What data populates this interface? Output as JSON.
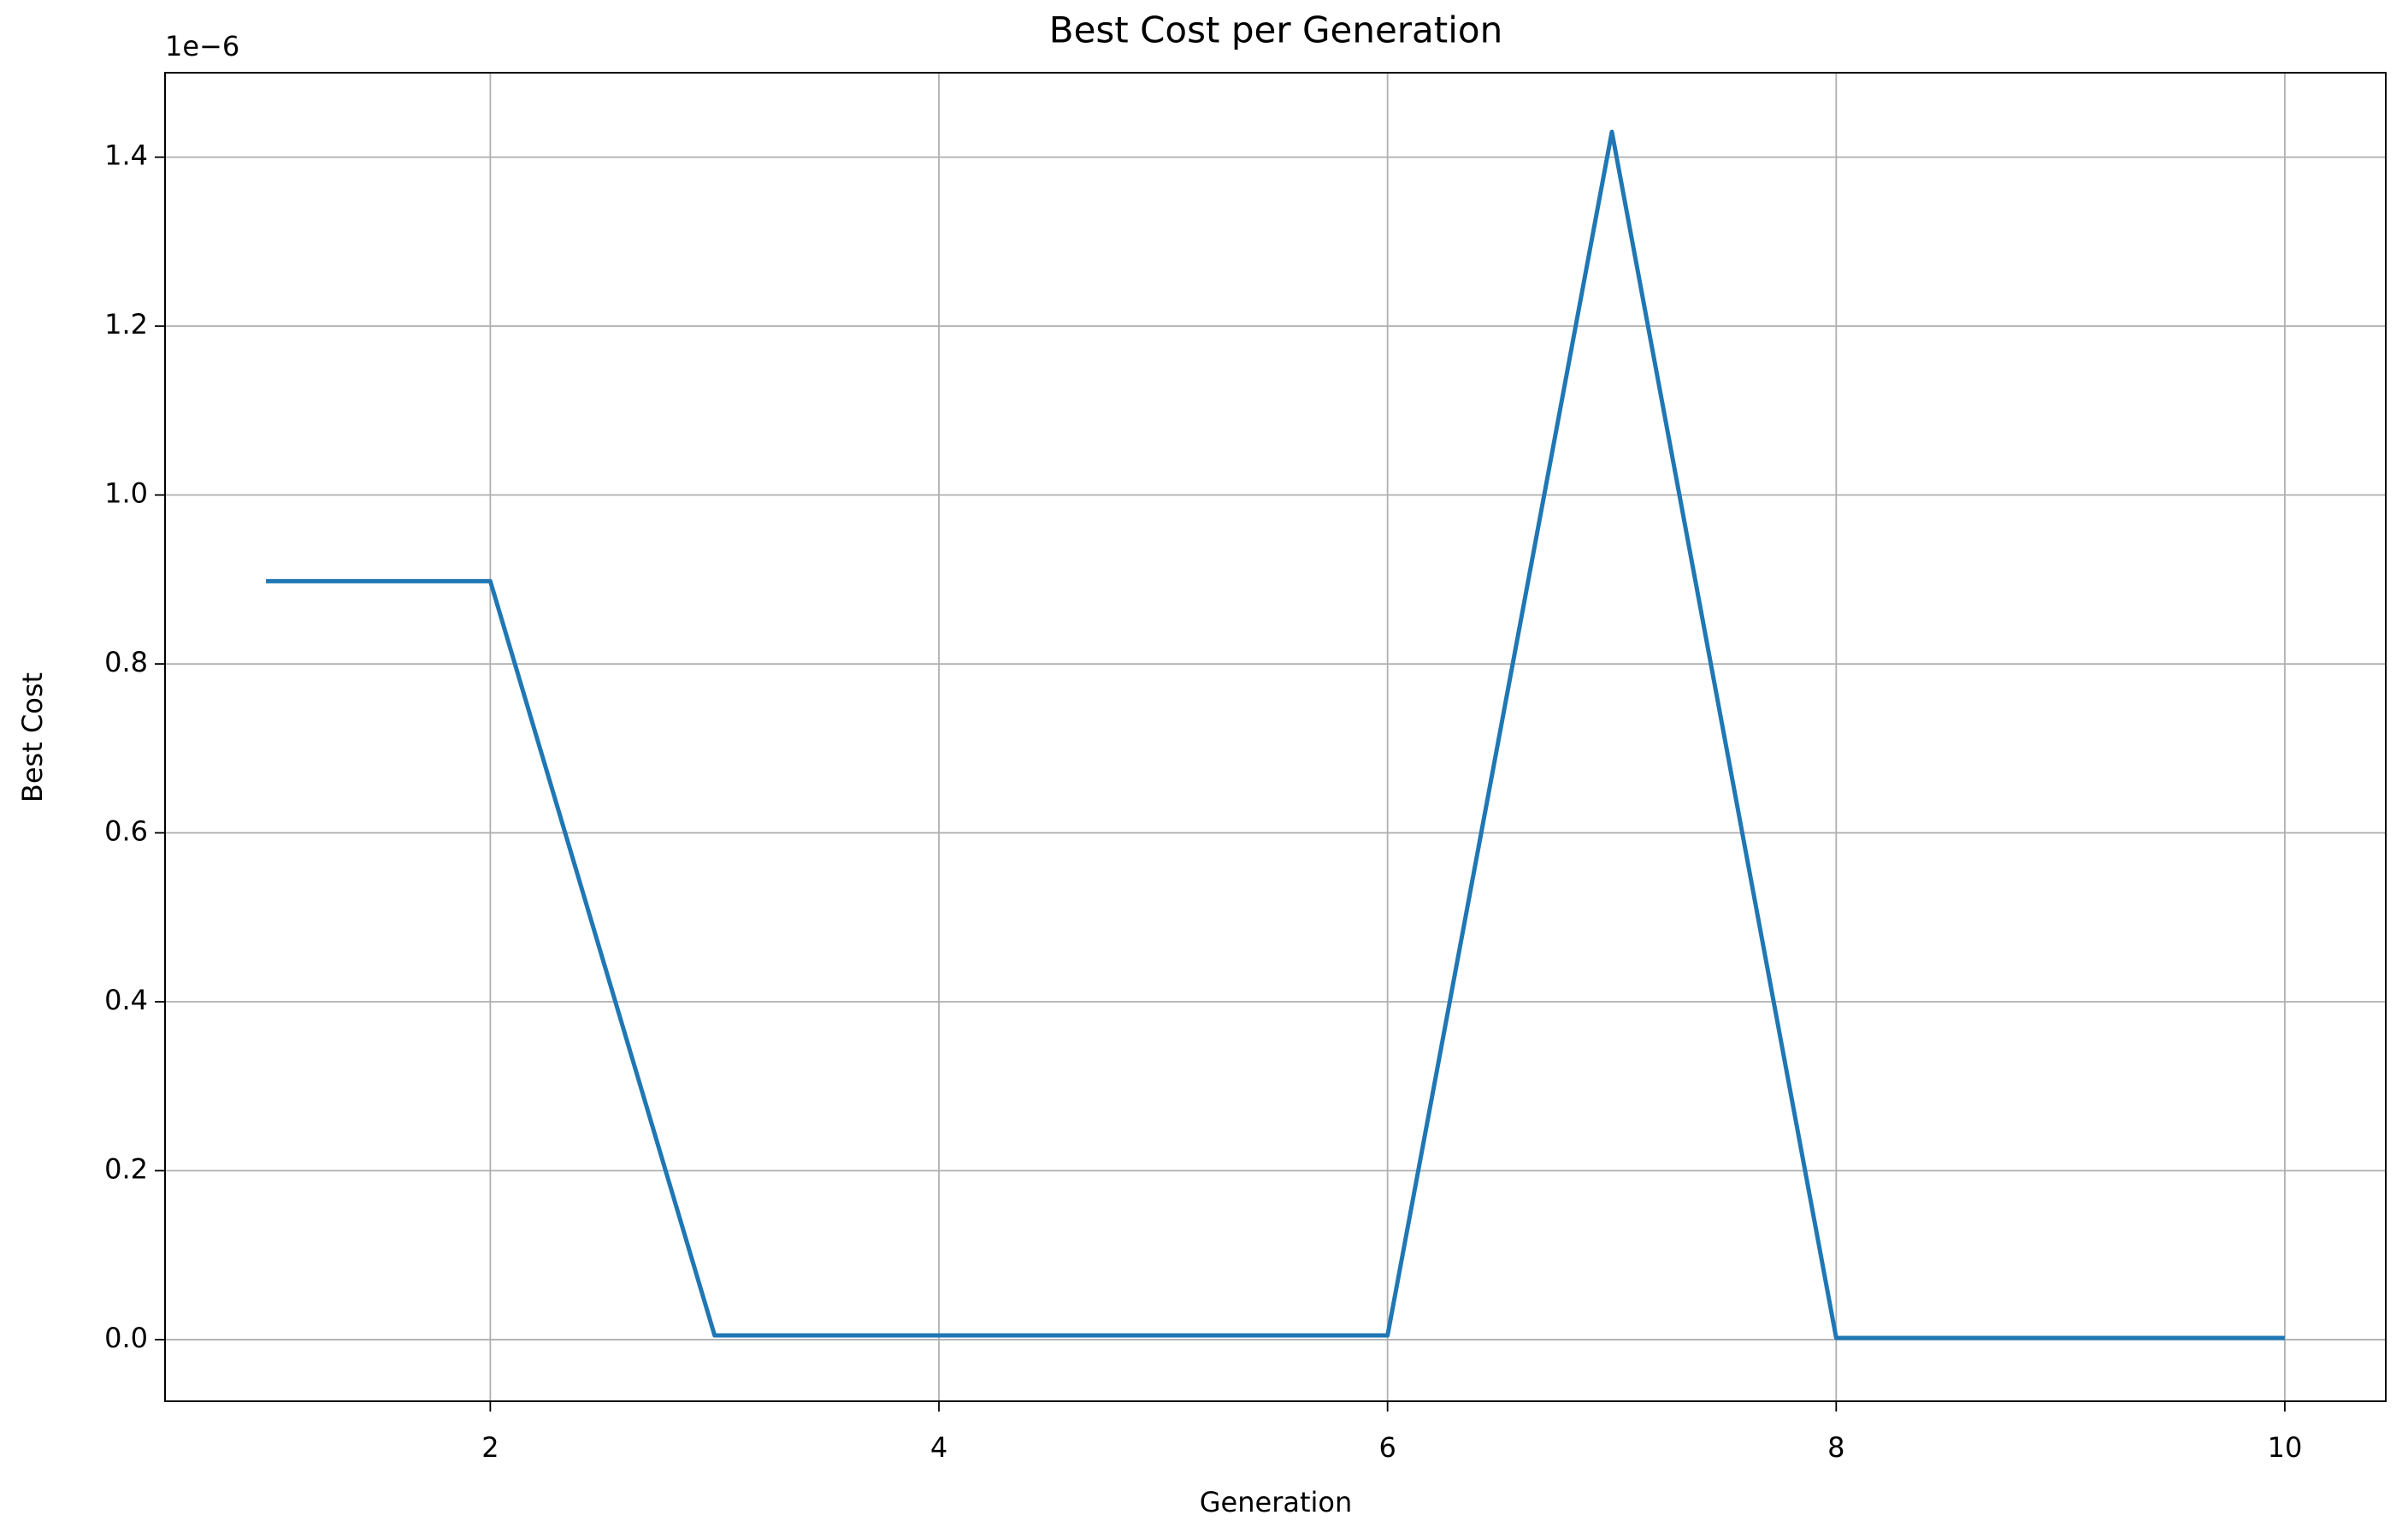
{
  "chart_data": {
    "type": "line",
    "title": "Best Cost per Generation",
    "x_label": "Generation",
    "y_label": "Best Cost",
    "y_offset_label": "1e−6",
    "x": [
      1,
      2,
      3,
      4,
      5,
      6,
      7,
      8,
      9,
      10
    ],
    "series": [
      {
        "color": "#1f77b4",
        "values": [
          0.898,
          0.898,
          0.005,
          0.005,
          0.005,
          0.005,
          1.43,
          0.002,
          0.002,
          0.002
        ]
      }
    ],
    "xlim": [
      0.55,
      10.45
    ],
    "xticks": [
      2,
      4,
      6,
      8,
      10
    ],
    "ylim": [
      -0.073,
      1.5
    ],
    "yticks": [
      {
        "value": 0,
        "label": "0.0"
      },
      0.2,
      0.4,
      0.6,
      0.8,
      {
        "value": 1,
        "label": "1.0"
      },
      1.2,
      1.4
    ],
    "grid": true
  }
}
